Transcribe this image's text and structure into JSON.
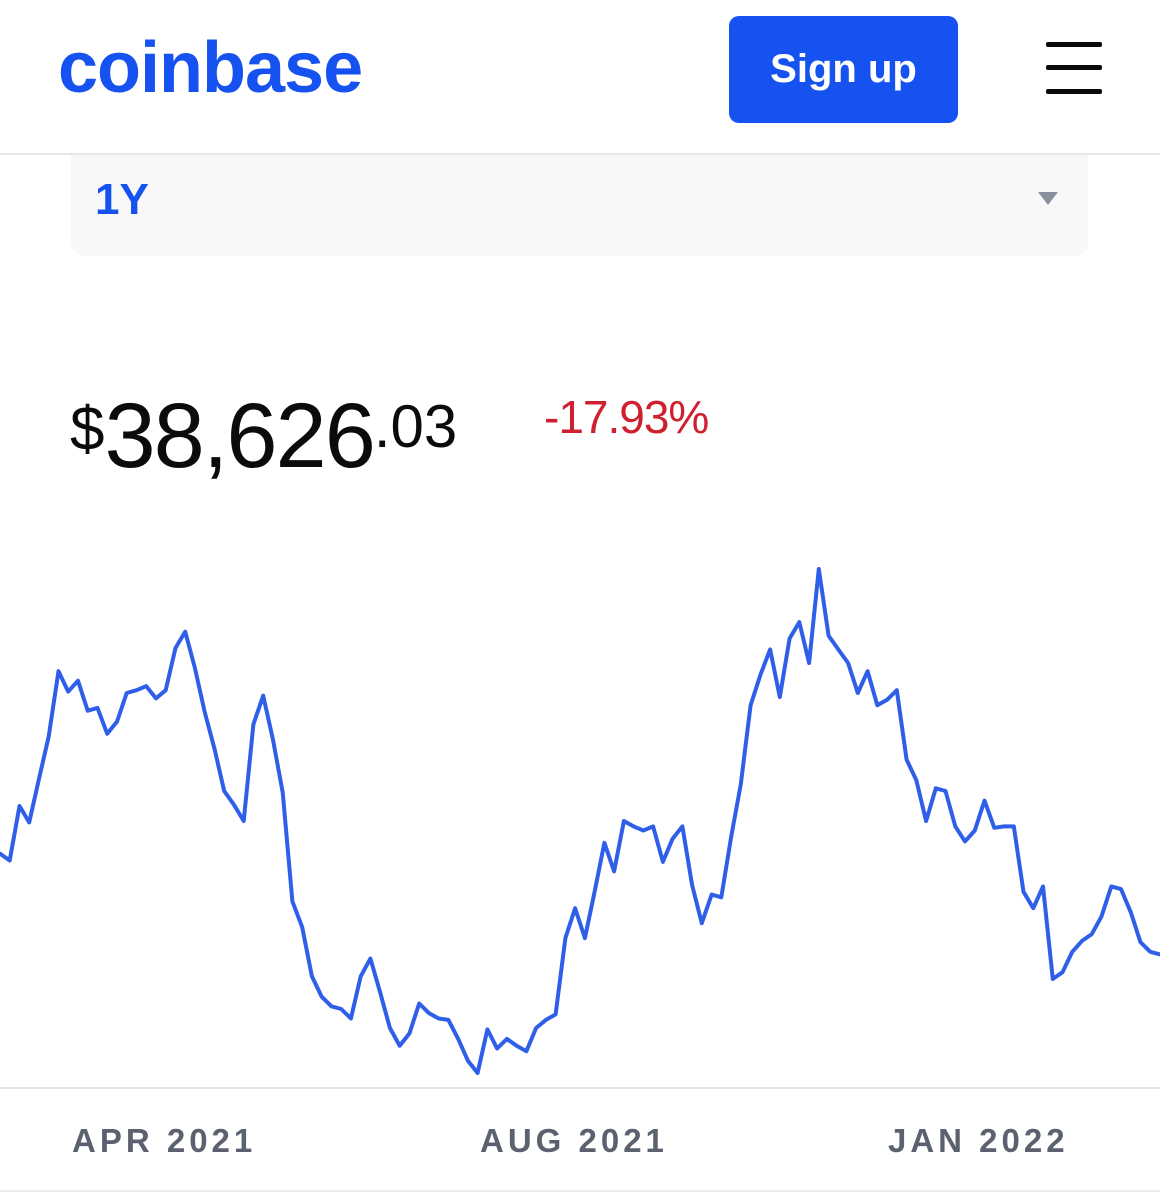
{
  "header": {
    "logo": "coinbase",
    "signup_label": "Sign up",
    "menu_icon": "hamburger-menu-icon"
  },
  "range_selector": {
    "value": "1Y",
    "caret_icon": "triangle-down-icon"
  },
  "price": {
    "currency": "$",
    "whole": "38,626",
    "decimal": ".03",
    "change": "-17.93%"
  },
  "colors": {
    "accent": "#1652f0",
    "negative": "#cf202f",
    "line": "#2f5fe8",
    "axis_text": "#5b616e"
  },
  "chart_data": {
    "type": "line",
    "x_ticks": [
      "APR 2021",
      "AUG 2021",
      "JAN 2022"
    ],
    "series": [
      {
        "values": [
          46000,
          45500,
          49500,
          48300,
          51500,
          54600,
          59400,
          57900,
          58700,
          56500,
          56700,
          54800,
          55700,
          57800,
          58000,
          58300,
          57400,
          58000,
          61100,
          62300,
          59600,
          56400,
          53700,
          50600,
          49600,
          48400,
          55500,
          57600,
          54400,
          50500,
          42500,
          40600,
          37000,
          35500,
          34800,
          34600,
          33900,
          37000,
          38300,
          35800,
          33200,
          31900,
          32800,
          35000,
          34300,
          33900,
          33800,
          32400,
          30800,
          29900,
          33100,
          31700,
          32400,
          31900,
          31500,
          33200,
          33800,
          34200,
          39800,
          42000,
          39800,
          43200,
          46800,
          44700,
          48400,
          48000,
          47700,
          48000,
          45400,
          47100,
          48000,
          43700,
          40900,
          43000,
          42800,
          47200,
          51100,
          56900,
          59100,
          61000,
          57500,
          61800,
          63000,
          60000,
          66900,
          62000,
          61000,
          60000,
          57800,
          59400,
          56900,
          57300,
          58000,
          52900,
          51400,
          48400,
          50800,
          50600,
          48000,
          46900,
          47700,
          49900,
          47900,
          48000,
          48000,
          43200,
          42000,
          43600,
          36800,
          37300,
          38800,
          39600,
          40100,
          41400,
          43600,
          43400,
          41700,
          39500,
          38800,
          38600
        ]
      }
    ]
  }
}
